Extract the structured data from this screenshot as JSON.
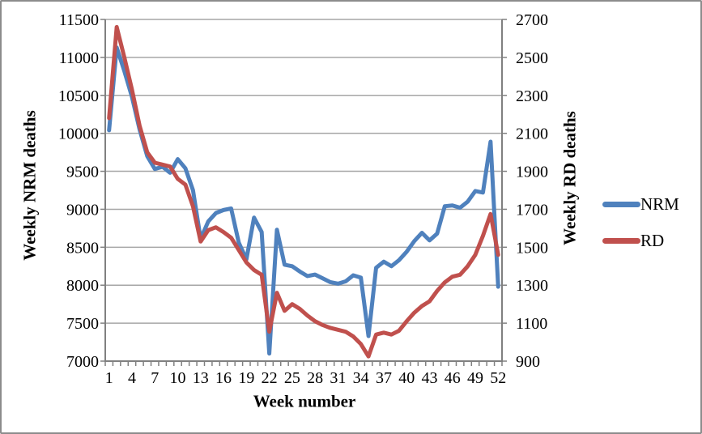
{
  "chart": {
    "left_axis_title": "Weekly NRM deaths",
    "right_axis_title": "Weekly RD deaths",
    "x_axis_title": "Week number",
    "background": "#FFFFFF",
    "frame_border_color": "#8C8C8C",
    "gridline_color": "#A6A6A6",
    "axis_line_color": "#808080",
    "text_color": "#000000"
  },
  "chart_data": {
    "type": "line",
    "title": "",
    "xlabel": "Week number",
    "grid": true,
    "legend_position": "right",
    "x": [
      1,
      2,
      3,
      4,
      5,
      6,
      7,
      8,
      9,
      10,
      11,
      12,
      13,
      14,
      15,
      16,
      17,
      18,
      19,
      20,
      21,
      22,
      23,
      24,
      25,
      26,
      27,
      28,
      29,
      30,
      31,
      32,
      33,
      34,
      35,
      36,
      37,
      38,
      39,
      40,
      41,
      42,
      43,
      44,
      45,
      46,
      47,
      48,
      49,
      50,
      51,
      52
    ],
    "x_axis": {
      "label": "Week number",
      "tick_labels": [
        1,
        4,
        7,
        10,
        13,
        16,
        19,
        22,
        25,
        28,
        31,
        34,
        37,
        40,
        43,
        46,
        49,
        52
      ]
    },
    "left_axis": {
      "label": "Weekly NRM deaths",
      "min": 7000,
      "max": 11500,
      "tick_step": 500,
      "ticks": [
        7000,
        7500,
        8000,
        8500,
        9000,
        9500,
        10000,
        10500,
        11000,
        11500
      ]
    },
    "right_axis": {
      "label": "Weekly RD deaths",
      "min": 900,
      "max": 2700,
      "tick_step": 200,
      "ticks": [
        900,
        1100,
        1300,
        1500,
        1700,
        1900,
        2100,
        2300,
        2500,
        2700
      ]
    },
    "series": [
      {
        "name": "NRM",
        "axis": "left",
        "color": "#4F81BD",
        "values": [
          10040,
          11130,
          10820,
          10480,
          10050,
          9700,
          9530,
          9560,
          9480,
          9660,
          9540,
          9250,
          8610,
          8840,
          8950,
          8990,
          9010,
          8560,
          8340,
          8890,
          8700,
          7100,
          8730,
          8270,
          8250,
          8180,
          8120,
          8140,
          8090,
          8040,
          8020,
          8050,
          8130,
          8100,
          7330,
          8230,
          8310,
          8250,
          8330,
          8440,
          8580,
          8690,
          8590,
          8680,
          9040,
          9050,
          9020,
          9100,
          9240,
          9220,
          9890,
          7980
        ]
      },
      {
        "name": "RD",
        "axis": "right",
        "color": "#C0504D",
        "values": [
          2180,
          2660,
          2500,
          2330,
          2140,
          2000,
          1945,
          1935,
          1925,
          1860,
          1830,
          1715,
          1530,
          1590,
          1605,
          1580,
          1550,
          1485,
          1420,
          1380,
          1355,
          1055,
          1260,
          1165,
          1200,
          1175,
          1140,
          1110,
          1090,
          1075,
          1065,
          1055,
          1030,
          990,
          925,
          1040,
          1050,
          1040,
          1060,
          1110,
          1155,
          1190,
          1215,
          1270,
          1315,
          1345,
          1355,
          1400,
          1460,
          1560,
          1675,
          1460
        ]
      }
    ]
  }
}
